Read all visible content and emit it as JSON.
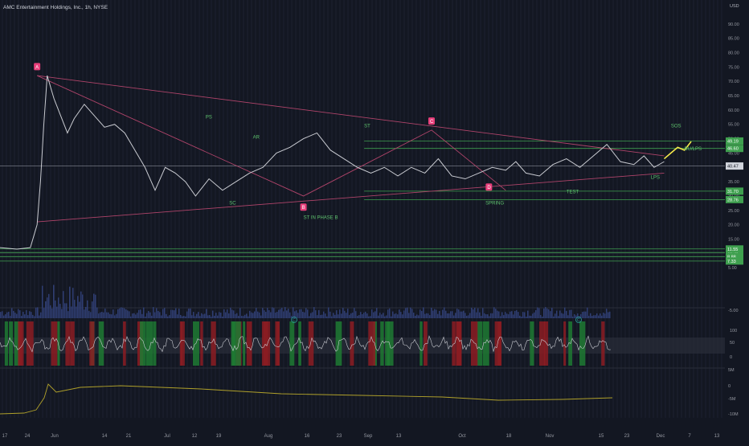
{
  "header": {
    "title": "AMC Entertainment Holdings, Inc., 1h, NYSE"
  },
  "colors": {
    "background": "#131722",
    "price_line": "#c9cbd1",
    "projection": "#f5e94a",
    "wedge": "#b0446a",
    "levels": "#3fa04f",
    "labels_green": "#5fc46e",
    "badge_pink": "#e83e7a",
    "indicator_red": "#8c1c22",
    "indicator_green": "#1f7a32",
    "obv_line": "#b0a12a",
    "volume": "#2f3e73"
  },
  "chart_data": [
    {
      "type": "line",
      "title": "",
      "currency": "USD",
      "ylim": [
        0,
        95
      ],
      "y_ticks": [
        "90.00",
        "85.00",
        "80.00",
        "75.00",
        "70.00",
        "65.00",
        "60.00",
        "55.00",
        "50.00",
        "45.00",
        "40.00",
        "35.00",
        "30.00",
        "25.00",
        "20.00",
        "15.00",
        "10.00",
        "5.00"
      ],
      "x_ticks": [
        "17",
        "24",
        "Jun",
        "14",
        "21",
        "Jul",
        "12",
        "19",
        "Aug",
        "16",
        "23",
        "Sep",
        "13",
        "Oct",
        "18",
        "Nov",
        "15",
        "23",
        "Dec",
        "7",
        "13"
      ],
      "series": [
        {
          "values_note_x": "trading day index",
          "x": [
            0,
            5,
            9,
            11,
            12,
            13,
            14,
            16,
            18,
            20,
            22,
            25,
            28,
            31,
            34,
            37,
            40,
            43,
            46,
            49,
            52,
            55,
            58,
            62,
            66,
            70,
            74,
            78,
            82,
            86,
            90,
            94,
            98,
            102,
            106,
            110,
            114,
            118,
            122,
            126,
            130,
            134,
            138,
            142,
            146,
            150,
            153,
            156,
            160,
            164,
            168,
            172,
            176,
            180,
            184,
            188,
            191,
            194,
            197
          ],
          "y": [
            12,
            11.5,
            12,
            20,
            35,
            55,
            72,
            64,
            58,
            52,
            57,
            62,
            58,
            54,
            55,
            52,
            46,
            40,
            32,
            40,
            38,
            35,
            30,
            36,
            32,
            35,
            38,
            40,
            45,
            47,
            50,
            52,
            46,
            43,
            40,
            38,
            40,
            37,
            40,
            38,
            43,
            37,
            36,
            38,
            40,
            39,
            42,
            38,
            37,
            41,
            43,
            40,
            44,
            48,
            42,
            41,
            44,
            40,
            42
          ]
        },
        {
          "name_note": "projected path",
          "x": [
            197,
            199,
            201,
            203,
            205
          ],
          "y": [
            43,
            45,
            47,
            46,
            49
          ]
        }
      ],
      "price_badges": [
        "49.19",
        "46.60",
        "40.47",
        "31.70",
        "28.76",
        "10.32",
        "11.55",
        "8.88",
        "7.33"
      ],
      "horizontal_levels": [
        49.19,
        46.6,
        31.7,
        28.76,
        10.32,
        11.55,
        8.88,
        7.33
      ],
      "annotations": [
        "PS",
        "SC",
        "AR",
        "ST IN PHASE B",
        "ST",
        "SPRING",
        "TEST",
        "LPS",
        "BU/LPS",
        "SOS"
      ],
      "badges": [
        "A",
        "B",
        "C",
        "D"
      ]
    },
    {
      "type": "bar",
      "title": "",
      "y_ticks": [
        "-5.00"
      ],
      "note": "volume histogram"
    },
    {
      "type": "line",
      "title": "",
      "y_ticks": [
        "100",
        "50",
        "0"
      ],
      "markers": [
        "C",
        "C"
      ]
    },
    {
      "type": "line",
      "title": "",
      "y_ticks": [
        "5M",
        "0",
        "-5M",
        "-10M"
      ]
    }
  ]
}
